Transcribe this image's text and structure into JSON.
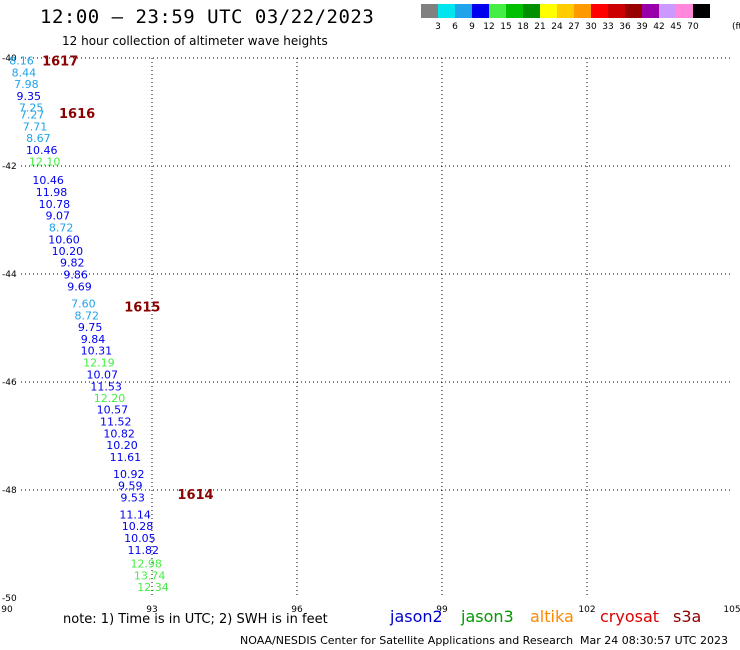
{
  "header": {
    "title": "12:00 – 23:59 UTC 03/22/2023",
    "subtitle": "12 hour collection of altimeter wave heights"
  },
  "legend": {
    "colors": [
      "#808080",
      "#00e5ee",
      "#1fa3ea",
      "#0000ee",
      "#44ee44",
      "#00c000",
      "#009000",
      "#ffff00",
      "#ffcc00",
      "#ff9900",
      "#ff0000",
      "#cc0000",
      "#990000",
      "#9900aa",
      "#cc99ff",
      "#ff88dd",
      "#000000"
    ],
    "ticks": [
      "3",
      "6",
      "9",
      "12",
      "15",
      "18",
      "21",
      "24",
      "27",
      "30",
      "33",
      "36",
      "39",
      "42",
      "45",
      "70"
    ],
    "unit": "(ft)"
  },
  "chart_data": {
    "type": "scatter",
    "xlim": [
      90,
      105
    ],
    "ylim": [
      -50,
      -40
    ],
    "x_ticks": [
      "90",
      "93",
      "96",
      "99",
      "102",
      "105"
    ],
    "y_ticks": [
      "-40",
      "-42",
      "-44",
      "-46",
      "-48",
      "-50"
    ],
    "grid": true,
    "points": [
      {
        "x": 90.3,
        "y": -40.05,
        "label": "8.16",
        "color": "#1fa3ea"
      },
      {
        "x": 90.35,
        "y": -40.27,
        "label": "8.44",
        "color": "#1fa3ea"
      },
      {
        "x": 90.4,
        "y": -40.48,
        "label": "7.98",
        "color": "#1fa3ea"
      },
      {
        "x": 90.45,
        "y": -40.7,
        "label": "9.35",
        "color": "#0000ee"
      },
      {
        "x": 90.5,
        "y": -40.92,
        "label": "7.25",
        "color": "#1fa3ea"
      },
      {
        "x": 90.52,
        "y": -41.05,
        "label": "7.27",
        "color": "#1fa3ea"
      },
      {
        "x": 90.58,
        "y": -41.27,
        "label": "7.71",
        "color": "#1fa3ea"
      },
      {
        "x": 90.65,
        "y": -41.48,
        "label": "8.67",
        "color": "#1fa3ea"
      },
      {
        "x": 90.72,
        "y": -41.7,
        "label": "10.46",
        "color": "#0000ee"
      },
      {
        "x": 90.78,
        "y": -41.92,
        "label": "12.10",
        "color": "#44ee44"
      },
      {
        "x": 90.85,
        "y": -42.26,
        "label": "10.46",
        "color": "#0000ee"
      },
      {
        "x": 90.92,
        "y": -42.48,
        "label": "11.98",
        "color": "#0000ee"
      },
      {
        "x": 90.98,
        "y": -42.7,
        "label": "10.78",
        "color": "#0000ee"
      },
      {
        "x": 91.05,
        "y": -42.92,
        "label": "9.07",
        "color": "#0000ee"
      },
      {
        "x": 91.12,
        "y": -43.14,
        "label": "8.72",
        "color": "#1fa3ea"
      },
      {
        "x": 91.18,
        "y": -43.36,
        "label": "10.60",
        "color": "#0000ee"
      },
      {
        "x": 91.25,
        "y": -43.57,
        "label": "10.20",
        "color": "#0000ee"
      },
      {
        "x": 91.35,
        "y": -43.79,
        "label": "9.82",
        "color": "#0000ee"
      },
      {
        "x": 91.42,
        "y": -44.01,
        "label": "9.86",
        "color": "#0000ee"
      },
      {
        "x": 91.5,
        "y": -44.23,
        "label": "9.69",
        "color": "#0000ee"
      },
      {
        "x": 91.58,
        "y": -44.55,
        "label": "7.60",
        "color": "#1fa3ea"
      },
      {
        "x": 91.65,
        "y": -44.77,
        "label": "8.72",
        "color": "#1fa3ea"
      },
      {
        "x": 91.72,
        "y": -44.98,
        "label": "9.75",
        "color": "#0000ee"
      },
      {
        "x": 91.78,
        "y": -45.2,
        "label": "9.84",
        "color": "#0000ee"
      },
      {
        "x": 91.85,
        "y": -45.42,
        "label": "10.31",
        "color": "#0000ee"
      },
      {
        "x": 91.9,
        "y": -45.64,
        "label": "12.19",
        "color": "#44ee44"
      },
      {
        "x": 91.97,
        "y": -45.86,
        "label": "10.07",
        "color": "#0000ee"
      },
      {
        "x": 92.05,
        "y": -46.08,
        "label": "11.53",
        "color": "#0000ee"
      },
      {
        "x": 92.12,
        "y": -46.3,
        "label": "12.20",
        "color": "#44ee44"
      },
      {
        "x": 92.18,
        "y": -46.51,
        "label": "10.57",
        "color": "#0000ee"
      },
      {
        "x": 92.25,
        "y": -46.73,
        "label": "11.52",
        "color": "#0000ee"
      },
      {
        "x": 92.32,
        "y": -46.95,
        "label": "10.82",
        "color": "#0000ee"
      },
      {
        "x": 92.38,
        "y": -47.17,
        "label": "10.20",
        "color": "#0000ee"
      },
      {
        "x": 92.45,
        "y": -47.39,
        "label": "11.61",
        "color": "#0000ee"
      },
      {
        "x": 92.52,
        "y": -47.7,
        "label": "10.92",
        "color": "#0000ee"
      },
      {
        "x": 92.55,
        "y": -47.92,
        "label": "9.59",
        "color": "#0000ee"
      },
      {
        "x": 92.6,
        "y": -48.14,
        "label": "9.53",
        "color": "#0000ee"
      },
      {
        "x": 92.65,
        "y": -48.45,
        "label": "11.14",
        "color": "#0000ee"
      },
      {
        "x": 92.7,
        "y": -48.67,
        "label": "10.28",
        "color": "#0000ee"
      },
      {
        "x": 92.75,
        "y": -48.89,
        "label": "10.05",
        "color": "#0000ee"
      },
      {
        "x": 92.82,
        "y": -49.11,
        "label": "11.82",
        "color": "#0000ee"
      },
      {
        "x": 92.88,
        "y": -49.36,
        "label": "12.98",
        "color": "#44ee44"
      },
      {
        "x": 92.95,
        "y": -49.58,
        "label": "13.74",
        "color": "#44ee44"
      },
      {
        "x": 93.02,
        "y": -49.8,
        "label": "12.34",
        "color": "#44ee44"
      }
    ],
    "time_labels": [
      {
        "x": 91.1,
        "y": -40.05,
        "label": "1617"
      },
      {
        "x": 91.45,
        "y": -41.02,
        "label": "1616"
      },
      {
        "x": 92.8,
        "y": -44.6,
        "label": "1615"
      },
      {
        "x": 93.9,
        "y": -48.07,
        "label": "1614"
      }
    ],
    "time_label_color": "#8b0000"
  },
  "footer": {
    "note": "note:  1) Time is in UTC;  2) SWH is in feet",
    "satellites": [
      {
        "name": "jason2",
        "color": "#0000cc"
      },
      {
        "name": "jason3",
        "color": "#009900"
      },
      {
        "name": "altika",
        "color": "#ff8800"
      },
      {
        "name": "cryosat",
        "color": "#dd0000"
      },
      {
        "name": "s3a",
        "color": "#8b0000"
      }
    ],
    "credit": "NOAA/NESDIS Center for Satellite Applications and Research",
    "timestamp": "Mar 24 08:30:57 UTC 2023"
  }
}
